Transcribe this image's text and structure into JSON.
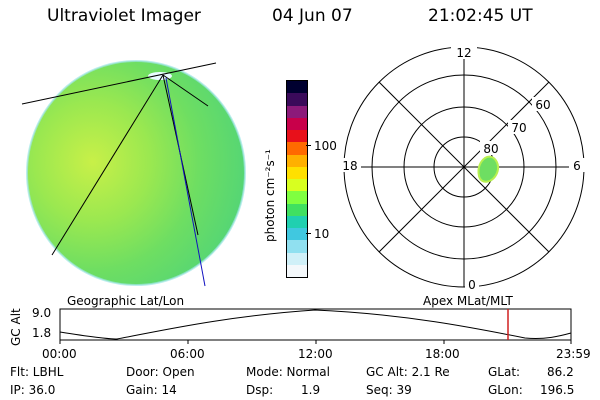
{
  "header": {
    "instrument": "Ultraviolet Imager",
    "date": "04 Jun 07",
    "time": "21:02:45 UT"
  },
  "colorbar": {
    "unit_label": "photon cm⁻²s⁻¹",
    "tick_labels": [
      "100",
      "10"
    ],
    "colors": [
      "#000030",
      "#3a0a5a",
      "#8c1a7a",
      "#c8004a",
      "#e8101a",
      "#ff6a00",
      "#ffb000",
      "#ffe000",
      "#d8ff20",
      "#80ff40",
      "#40e060",
      "#20d0b0",
      "#40c8e0",
      "#90e0f0",
      "#d0f0f8",
      "#f4f8fb"
    ]
  },
  "polar_plot": {
    "mlt_labels": {
      "top": "12",
      "left": "18",
      "right": "6",
      "bottom": "0"
    },
    "lat_labels": [
      "60",
      "70",
      "80"
    ]
  },
  "timeline": {
    "y_axis_label": "GC Alt",
    "y_ticks": [
      "9.0",
      "1.8"
    ],
    "left_caption": "Geographic Lat/Lon",
    "right_caption": "Apex MLat/MLT",
    "time_ticks": [
      "00:00",
      "06:00",
      "12:00",
      "18:00",
      "23:59"
    ],
    "current_marker_color": "#d02020"
  },
  "info": {
    "flt": "Flt: LBHL",
    "ip": "IP: 36.0",
    "door": "Door: Open",
    "gain": "Gain: 14",
    "mode": "Mode: Normal",
    "dsp_label": "Dsp:",
    "dsp_value": "1.9",
    "gc_alt": "GC Alt: 2.1 Re",
    "seq": "Seq: 39",
    "glat": "GLat:",
    "glat_value": "86.2",
    "glon": "GLon:",
    "glon_value": "196.5"
  }
}
